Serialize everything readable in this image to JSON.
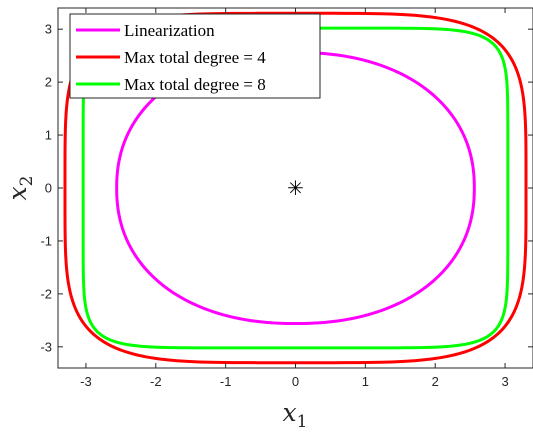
{
  "chart_data": {
    "type": "line",
    "xlabel": "x",
    "xlabel_sub": "1",
    "ylabel": "x",
    "ylabel_sub": "2",
    "xlim": [
      -3.4,
      3.4
    ],
    "ylim": [
      -3.4,
      3.4
    ],
    "xticks": [
      -3,
      -2,
      -1,
      0,
      1,
      2,
      3
    ],
    "yticks": [
      -3,
      -2,
      -1,
      0,
      1,
      2,
      3
    ],
    "grid": false,
    "legend_position": "top-left",
    "equilibrium_marker": {
      "x": 0,
      "y": 0,
      "symbol": "✳"
    },
    "series": [
      {
        "name": "Linearization",
        "color": "#ff00ff",
        "shape": "ellipse",
        "rx": 2.56,
        "ry": 2.56,
        "exponent": 2.2
      },
      {
        "name": "Max total degree = 4",
        "color": "#ff0000",
        "shape": "superellipse",
        "rx": 3.3,
        "ry": 3.3,
        "exponent": 4.5
      },
      {
        "name": "Max total degree = 8",
        "color": "#00ff00",
        "shape": "superellipse",
        "rx": 3.04,
        "ry": 3.02,
        "exponent": 8
      }
    ]
  }
}
